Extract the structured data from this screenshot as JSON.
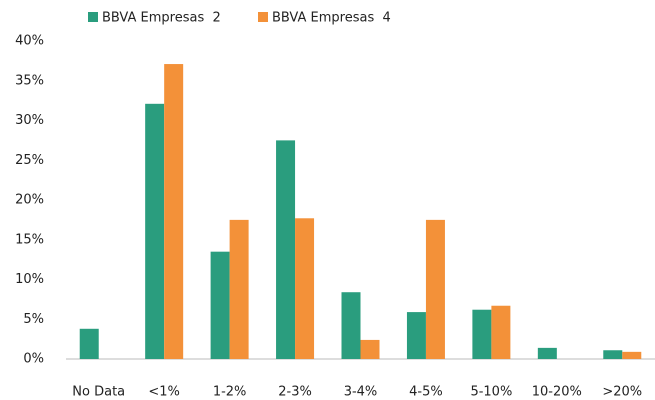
{
  "chart_data": {
    "type": "bar",
    "categories": [
      "No Data",
      "<1%",
      "1-2%",
      "2-3%",
      "3-4%",
      "4-5%",
      "5-10%",
      "10-20%",
      ">20%"
    ],
    "series": [
      {
        "name": "BBVA Empresas  2",
        "color": "#2a9d7e",
        "values": [
          3.8,
          32.1,
          13.5,
          27.5,
          8.4,
          5.9,
          6.2,
          1.4,
          1.1
        ]
      },
      {
        "name": "BBVA Empresas  4",
        "color": "#f39139",
        "values": [
          0,
          37.1,
          17.5,
          17.7,
          2.4,
          17.5,
          6.7,
          0,
          0.9
        ]
      }
    ],
    "ylim": [
      0,
      40
    ],
    "yticks": [
      {
        "value": 0,
        "label": "0%"
      },
      {
        "value": 5,
        "label": "5%"
      },
      {
        "value": 10,
        "label": "10%"
      },
      {
        "value": 15,
        "label": "15%"
      },
      {
        "value": 20,
        "label": "20%"
      },
      {
        "value": 25,
        "label": "25%"
      },
      {
        "value": 30,
        "label": "30%"
      },
      {
        "value": 35,
        "label": "35%"
      },
      {
        "value": 40,
        "label": "40%"
      }
    ],
    "grid": false,
    "legend": "top"
  }
}
